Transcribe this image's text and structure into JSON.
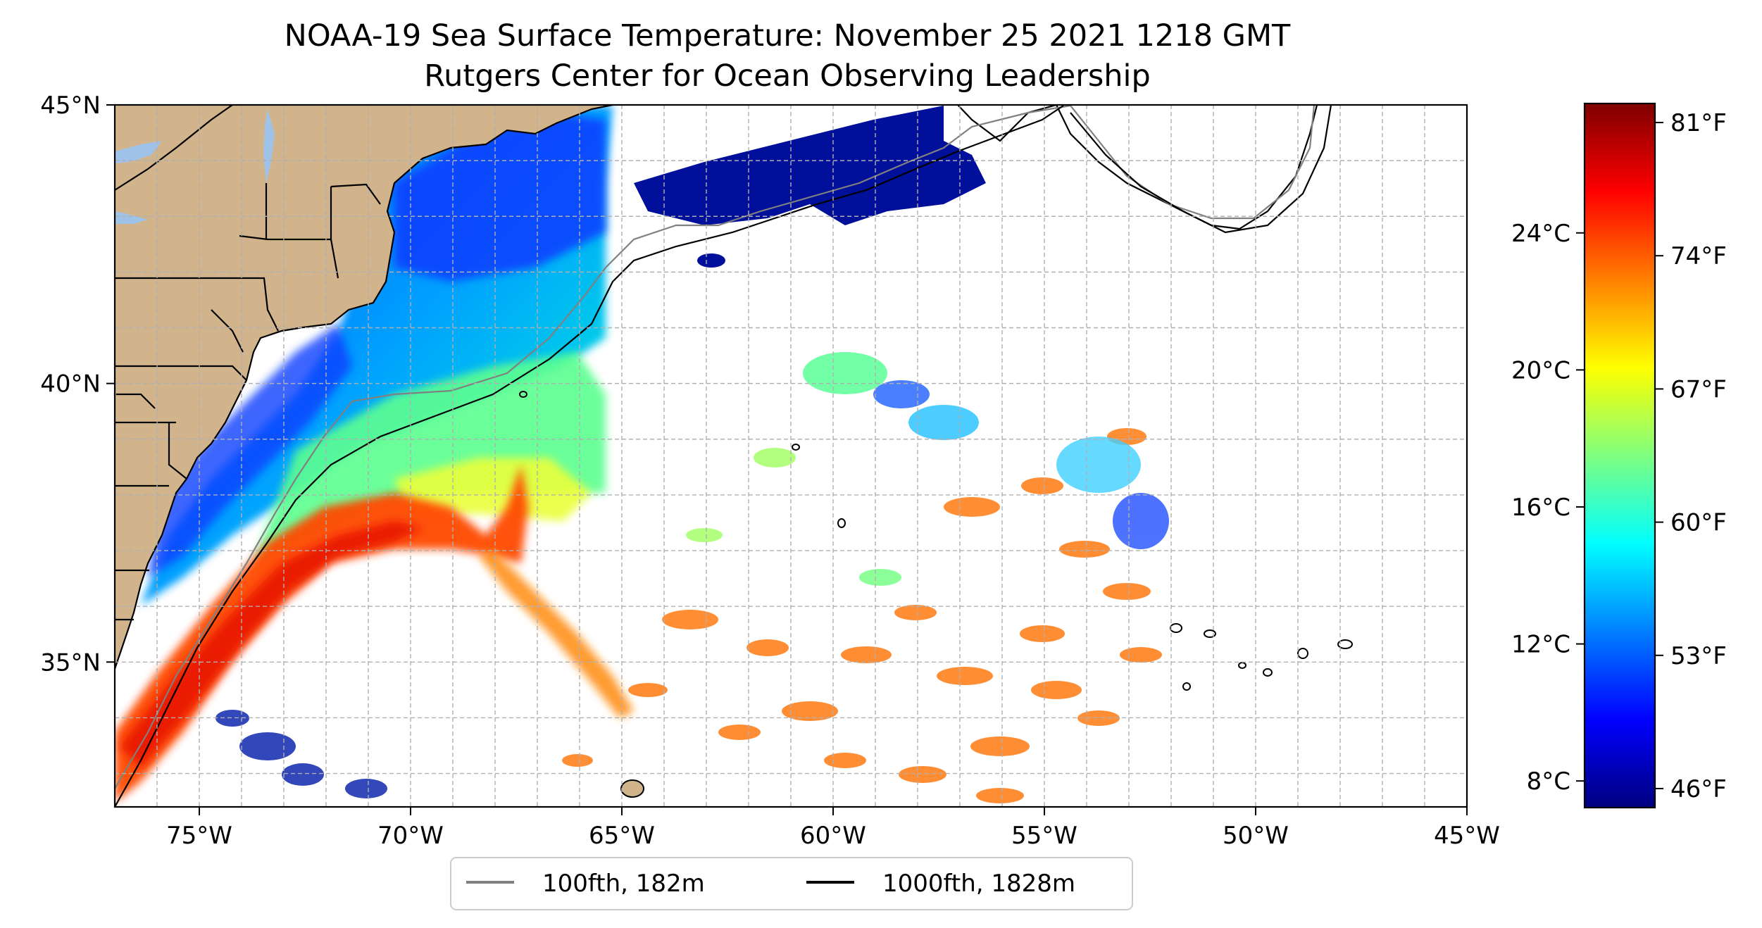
{
  "title_line1": "NOAA-19 Sea Surface Temperature: November 25 2021 1218 GMT",
  "title_line2": "Rutgers Center for Ocean Observing Leadership",
  "colors": {
    "land": "#d2b48c",
    "lakes": "#9fc3e8",
    "shelf_100fth": "#808080",
    "shelf_1000fth": "#000000",
    "grid": "#b0b0b0",
    "colormap": [
      "#00007f",
      "#0000ff",
      "#007fff",
      "#00ffff",
      "#7fff7f",
      "#ffff00",
      "#ff7f00",
      "#ff0000",
      "#7f0000"
    ]
  },
  "map": {
    "lon_range": [
      -77,
      -45
    ],
    "lat_range": [
      32.4,
      45
    ],
    "lon_ticks": [
      {
        "value": -75,
        "label": "75°W"
      },
      {
        "value": -70,
        "label": "70°W"
      },
      {
        "value": -65,
        "label": "65°W"
      },
      {
        "value": -60,
        "label": "60°W"
      },
      {
        "value": -55,
        "label": "55°W"
      },
      {
        "value": -50,
        "label": "50°W"
      },
      {
        "value": -45,
        "label": "45°W"
      }
    ],
    "lat_ticks": [
      {
        "value": 35,
        "label": "35°N"
      },
      {
        "value": 40,
        "label": "40°N"
      },
      {
        "value": 45,
        "label": "45°N"
      }
    ],
    "grid": "dashed"
  },
  "colorbar": {
    "range_f": [
      45,
      82
    ],
    "fahrenheit_ticks": [
      {
        "value": 46,
        "label": "46°F"
      },
      {
        "value": 53,
        "label": "53°F"
      },
      {
        "value": 60,
        "label": "60°F"
      },
      {
        "value": 67,
        "label": "67°F"
      },
      {
        "value": 74,
        "label": "74°F"
      },
      {
        "value": 81,
        "label": "81°F"
      }
    ],
    "celsius_ticks": [
      {
        "value": 8,
        "label": "8°C"
      },
      {
        "value": 12,
        "label": "12°C"
      },
      {
        "value": 16,
        "label": "16°C"
      },
      {
        "value": 20,
        "label": "20°C"
      },
      {
        "value": 24,
        "label": "24°C"
      }
    ]
  },
  "legend": {
    "placement": "bottom-center",
    "items": [
      {
        "label": "100fth, 182m",
        "color": "#808080"
      },
      {
        "label": "1000fth, 1828m",
        "color": "#000000"
      }
    ]
  }
}
